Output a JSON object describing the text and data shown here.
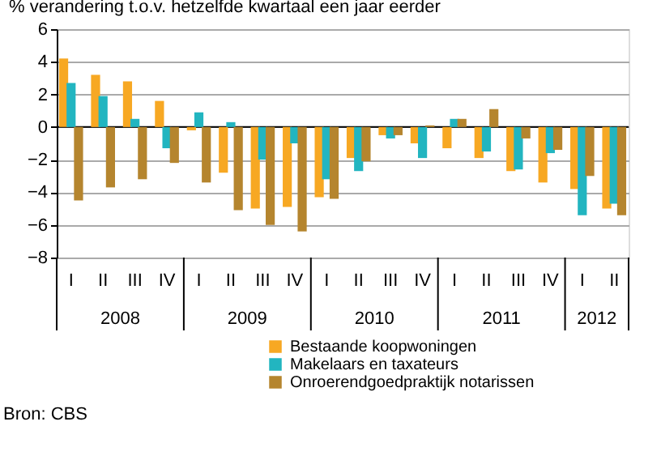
{
  "chart_data": {
    "type": "bar",
    "ylabel": "% verandering t.o.v. hetzelfde kwartaal een jaar eerder",
    "categories": [
      "I",
      "II",
      "III",
      "IV",
      "I",
      "II",
      "III",
      "IV",
      "I",
      "II",
      "III",
      "IV",
      "I",
      "II",
      "III",
      "IV",
      "I",
      "II"
    ],
    "series": [
      {
        "name": "Bestaande koopwoningen",
        "color": "#f7a823",
        "values": [
          4.2,
          3.2,
          2.8,
          1.6,
          -0.2,
          -2.8,
          -5.0,
          -4.9,
          -4.3,
          -1.9,
          -0.5,
          -1.0,
          -1.3,
          -1.9,
          -2.7,
          -3.4,
          -3.8,
          -5.0
        ]
      },
      {
        "name": "Makelaars en taxateurs",
        "color": "#22b5c0",
        "values": [
          2.7,
          1.9,
          0.5,
          -1.3,
          0.9,
          0.3,
          -2.0,
          -1.0,
          -3.2,
          -2.7,
          -0.7,
          -1.9,
          0.5,
          -1.5,
          -2.6,
          -1.6,
          -5.4,
          -4.7
        ]
      },
      {
        "name": "Onroerendgoedpraktijk notarissen",
        "color": "#b5852e",
        "values": [
          -4.5,
          -3.7,
          -3.2,
          -2.2,
          -3.4,
          -5.1,
          -6.0,
          -6.4,
          -4.4,
          -2.1,
          -0.5,
          0.1,
          0.5,
          1.1,
          -0.7,
          -1.4,
          -3.0,
          -5.4
        ]
      }
    ],
    "ylim": [
      -8,
      6
    ],
    "yticks": [
      -8,
      -6,
      -4,
      -2,
      0,
      2,
      4,
      6
    ],
    "grid": "y",
    "legend": "bottom",
    "annotations": [
      "2008",
      "2009",
      "2010",
      "2011",
      "2012",
      "Bron: CBS"
    ]
  }
}
